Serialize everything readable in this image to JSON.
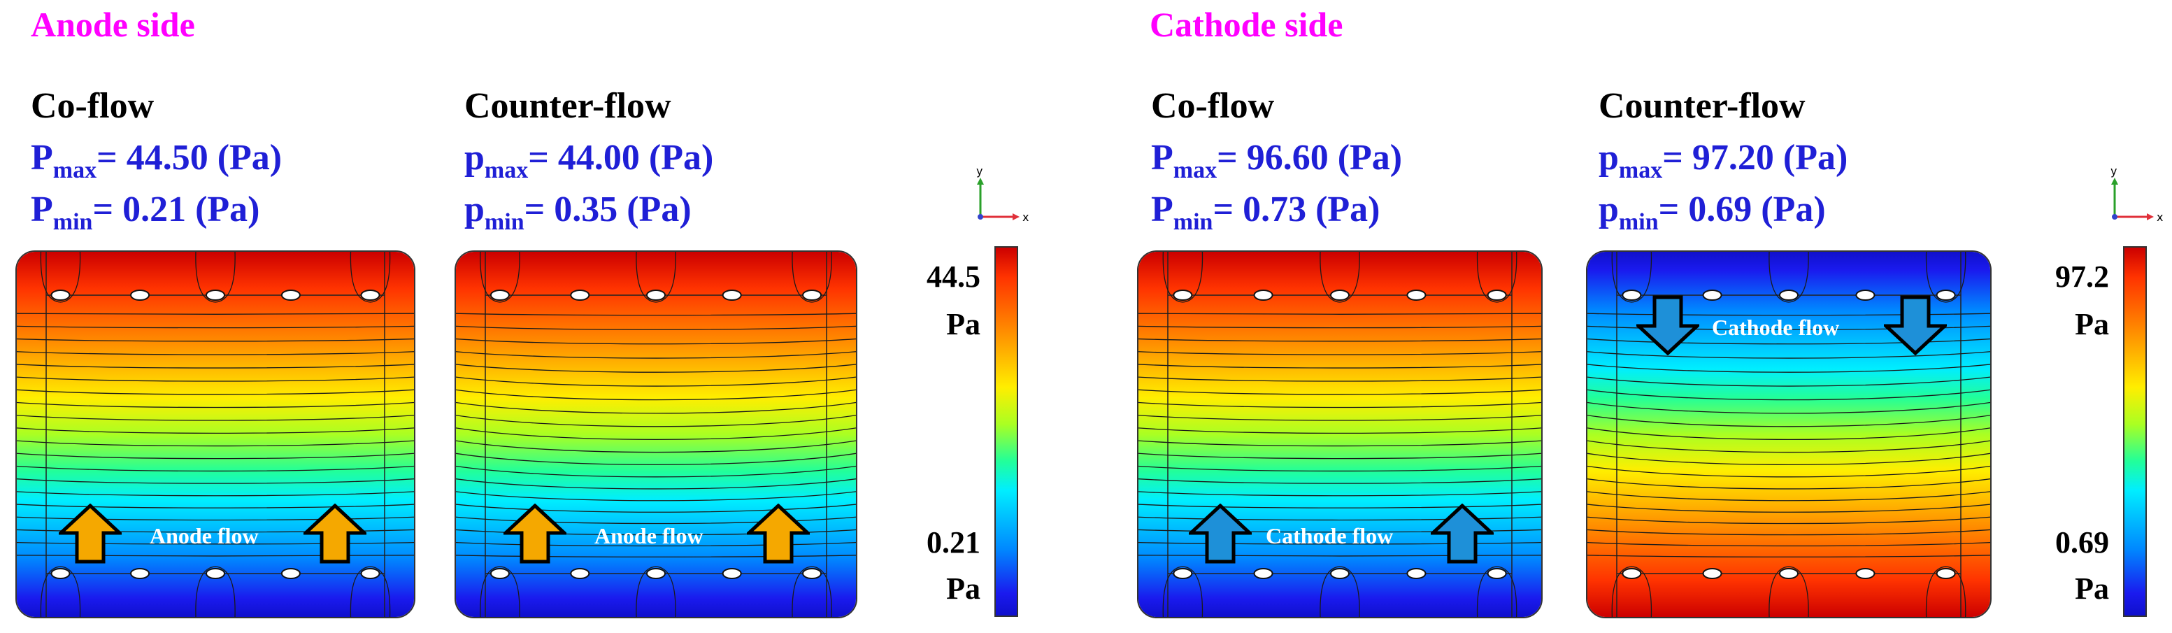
{
  "sections": [
    {
      "title": "Anode side",
      "flow_label": "Anode flow",
      "panels": [
        {
          "case": "Co-flow",
          "pmax_sym": "P",
          "pmax_val": "= 44.50 (Pa)",
          "pmin_sym": "P",
          "pmin_val": "= 0.21 (Pa)"
        },
        {
          "case": "Counter-flow",
          "pmax_sym": "p",
          "pmax_val": "= 44.00 (Pa)",
          "pmin_sym": "p",
          "pmin_val": "= 0.35 (Pa)"
        }
      ],
      "colorbar": {
        "max_value": "44.5",
        "max_unit": "Pa",
        "min_value": "0.21",
        "min_unit": "Pa"
      }
    },
    {
      "title": "Cathode side",
      "flow_label": "Cathode flow",
      "panels": [
        {
          "case": "Co-flow",
          "pmax_sym": "P",
          "pmax_val": "= 96.60 (Pa)",
          "pmin_sym": "P",
          "pmin_val": "= 0.73 (Pa)"
        },
        {
          "case": "Counter-flow",
          "pmax_sym": "p",
          "pmax_val": "= 97.20 (Pa)",
          "pmin_sym": "p",
          "pmin_val": "= 0.69 (Pa)"
        }
      ],
      "colorbar": {
        "max_value": "97.2",
        "max_unit": "Pa",
        "min_value": "0.69",
        "min_unit": "Pa"
      }
    }
  ],
  "labels": {
    "max_sub": "max",
    "min_sub": "min",
    "axis_x": "x",
    "axis_y": "y"
  },
  "colors": {
    "side_title": "#ff00ff",
    "pressure_text": "#1f1fd6",
    "anode_arrow": "#f5a800",
    "cathode_arrow": "#1e90d8"
  }
}
